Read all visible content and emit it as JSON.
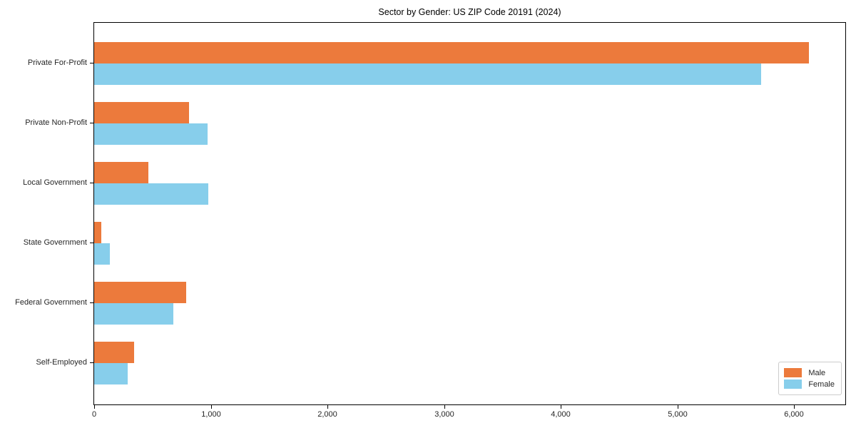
{
  "title": "Sector by Gender: US ZIP Code 20191 (2024)",
  "chart_data": {
    "type": "bar",
    "orientation": "horizontal",
    "title": "Sector by Gender: US ZIP Code 20191 (2024)",
    "categories": [
      "Private For-Profit",
      "Private Non-Profit",
      "Local Government",
      "State Government",
      "Federal Government",
      "Self-Employed"
    ],
    "series": [
      {
        "name": "Male",
        "color": "#ec7a3c",
        "values": [
          6130,
          815,
          465,
          60,
          790,
          340
        ]
      },
      {
        "name": "Female",
        "color": "#87ceeb",
        "values": [
          5720,
          970,
          980,
          135,
          680,
          285
        ]
      }
    ],
    "xlabel": "",
    "ylabel": "",
    "xlim": [
      0,
      6440
    ],
    "xticks": [
      0,
      1000,
      2000,
      3000,
      4000,
      5000,
      6000
    ],
    "xtick_labels": [
      "0",
      "1,000",
      "2,000",
      "3,000",
      "4,000",
      "5,000",
      "6,000"
    ],
    "grid": false,
    "legend": {
      "position": "lower right",
      "entries": [
        "Male",
        "Female"
      ]
    }
  }
}
